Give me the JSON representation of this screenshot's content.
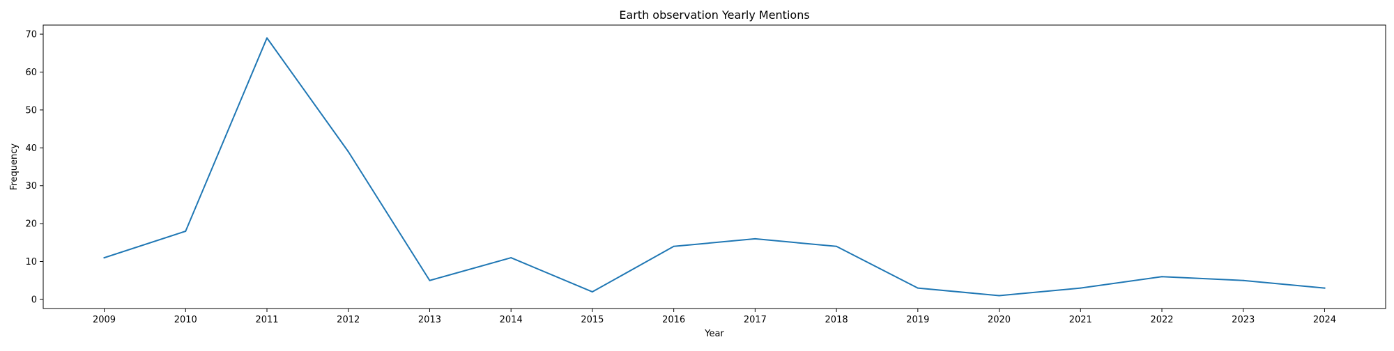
{
  "chart_data": {
    "type": "line",
    "title": "Earth observation Yearly Mentions",
    "xlabel": "Year",
    "ylabel": "Frequency",
    "x": [
      2009,
      2010,
      2011,
      2012,
      2013,
      2014,
      2015,
      2016,
      2017,
      2018,
      2019,
      2020,
      2021,
      2022,
      2023,
      2024
    ],
    "xticks": [
      "2009",
      "2010",
      "2011",
      "2012",
      "2013",
      "2014",
      "2015",
      "2016",
      "2017",
      "2018",
      "2019",
      "2020",
      "2021",
      "2022",
      "2023",
      "2024"
    ],
    "series": [
      {
        "values": [
          11,
          18,
          69,
          39,
          5,
          11,
          2,
          14,
          16,
          14,
          3,
          1,
          3,
          6,
          5,
          3
        ],
        "color": "#1f77b4"
      }
    ],
    "ylim": [
      -2.4,
      72.4
    ],
    "xlim": [
      2008.25,
      2024.75
    ],
    "yticks": [
      0,
      10,
      20,
      30,
      40,
      50,
      60,
      70
    ],
    "grid": false,
    "legend": "none"
  }
}
